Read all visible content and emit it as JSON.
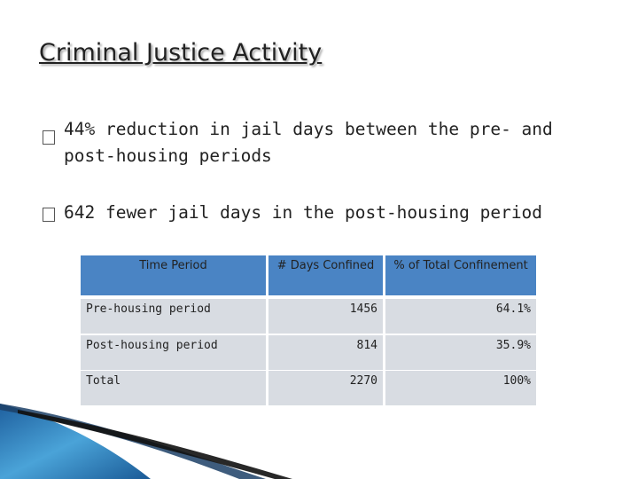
{
  "title": "Criminal Justice Activity",
  "bullets": [
    "44% reduction in jail days between the pre- and post-housing periods",
    "642 fewer jail days in the post-housing period"
  ],
  "table": {
    "header": [
      "Time Period",
      "# Days Confined",
      "% of Total Confinement"
    ],
    "rows": [
      [
        "Pre-housing period",
        "1456",
        "64.1%"
      ],
      [
        "Post-housing period",
        "814",
        "35.9%"
      ],
      [
        "Total",
        "2270",
        "100%"
      ]
    ]
  }
}
